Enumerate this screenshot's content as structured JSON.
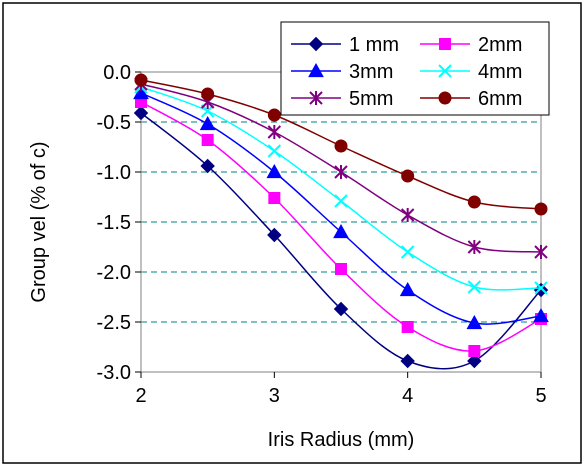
{
  "chart_data": {
    "type": "line",
    "title": "",
    "xlabel": "Iris Radius (mm)",
    "ylabel": "Group vel (% of c)",
    "xlim": [
      2,
      5
    ],
    "ylim": [
      -3.0,
      0.0
    ],
    "xticks": [
      "2",
      "3",
      "4",
      "5"
    ],
    "yticks": [
      "0.0",
      "-0.5",
      "-1.0",
      "-1.5",
      "-2.0",
      "-2.5",
      "-3.0"
    ],
    "grid": "horizontal dashed",
    "legend_position": "top-right",
    "x": [
      2,
      2.5,
      3,
      3.5,
      4,
      4.5,
      5
    ],
    "series": [
      {
        "name": "1 mm",
        "color": "#000080",
        "marker": "diamond",
        "values": [
          -0.41,
          -0.94,
          -1.63,
          -2.37,
          -2.89,
          -2.89,
          -2.18
        ]
      },
      {
        "name": "2mm",
        "color": "#ff00ff",
        "marker": "square",
        "values": [
          -0.3,
          -0.68,
          -1.26,
          -1.97,
          -2.55,
          -2.79,
          -2.47
        ]
      },
      {
        "name": "3mm",
        "color": "#0000ff",
        "marker": "triangle",
        "values": [
          -0.21,
          -0.52,
          -1.0,
          -1.6,
          -2.18,
          -2.51,
          -2.44
        ]
      },
      {
        "name": "4mm",
        "color": "#00ffff",
        "marker": "x",
        "values": [
          -0.15,
          -0.39,
          -0.79,
          -1.29,
          -1.8,
          -2.15,
          -2.16
        ]
      },
      {
        "name": "5mm",
        "color": "#800080",
        "marker": "star",
        "values": [
          -0.12,
          -0.3,
          -0.6,
          -1.0,
          -1.43,
          -1.75,
          -1.8
        ]
      },
      {
        "name": "6mm",
        "color": "#800000",
        "marker": "circle",
        "values": [
          -0.08,
          -0.22,
          -0.43,
          -0.74,
          -1.04,
          -1.3,
          -1.37
        ]
      }
    ]
  }
}
